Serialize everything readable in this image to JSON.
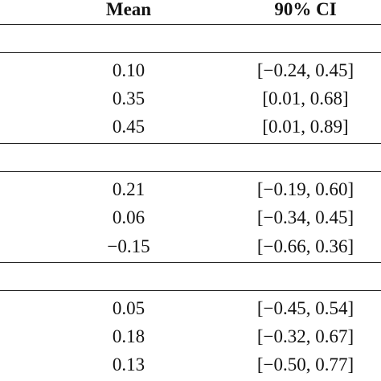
{
  "header": {
    "mean_label": "Mean",
    "ci_label": "90% CI"
  },
  "groups": [
    {
      "rows": [
        {
          "mean": "0.10",
          "ci": "[−0.24, 0.45]"
        },
        {
          "mean": "0.35",
          "ci": "[0.01, 0.68]"
        },
        {
          "mean": "0.45",
          "ci": "[0.01, 0.89]"
        }
      ]
    },
    {
      "rows": [
        {
          "mean": "0.21",
          "ci": "[−0.19, 0.60]"
        },
        {
          "mean": "0.06",
          "ci": "[−0.34, 0.45]"
        },
        {
          "mean": "−0.15",
          "ci": "[−0.66, 0.36]"
        }
      ]
    },
    {
      "rows": [
        {
          "mean": "0.05",
          "ci": "[−0.45, 0.54]"
        },
        {
          "mean": "0.18",
          "ci": "[−0.32, 0.67]"
        },
        {
          "mean": "0.13",
          "ci": "[−0.50, 0.77]"
        }
      ]
    }
  ]
}
